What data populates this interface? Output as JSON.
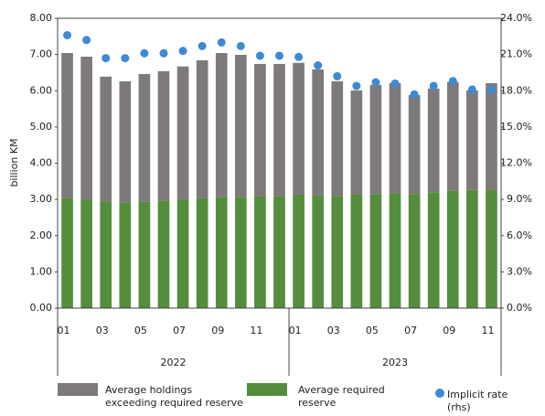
{
  "chart_data": {
    "type": "bar",
    "y_axis_label": "billion KM",
    "categories": [
      "01",
      null,
      "03",
      null,
      "05",
      null,
      "07",
      null,
      "09",
      null,
      "11",
      null,
      "01",
      null,
      "03",
      null,
      "05",
      null,
      "07",
      null,
      "09",
      null,
      "11"
    ],
    "year_labels": [
      "2022",
      "2023"
    ],
    "series": [
      {
        "name": "Average required reserve",
        "type": "bar",
        "color": "#548d3b",
        "values": [
          3.03,
          3.0,
          2.95,
          2.92,
          2.93,
          2.97,
          3.0,
          3.03,
          3.07,
          3.07,
          3.08,
          3.08,
          3.13,
          3.12,
          3.1,
          3.13,
          3.15,
          3.17,
          3.15,
          3.2,
          3.24,
          3.26,
          3.27
        ]
      },
      {
        "name": "Average holdings exceeding required reserve",
        "type": "bar",
        "color": "#7e7a7a",
        "values": [
          4.01,
          3.94,
          3.44,
          3.34,
          3.53,
          3.57,
          3.67,
          3.81,
          3.97,
          3.92,
          3.66,
          3.66,
          3.64,
          3.47,
          3.16,
          2.88,
          3.01,
          3.04,
          2.73,
          2.86,
          3.0,
          2.75,
          2.94
        ]
      },
      {
        "name": "Implicit rate (rhs)",
        "type": "scatter",
        "axis": "y2",
        "color": "#3d8ad6",
        "values": [
          22.6,
          22.2,
          20.7,
          20.7,
          21.1,
          21.1,
          21.3,
          21.7,
          22.0,
          21.7,
          20.9,
          20.9,
          20.8,
          20.1,
          19.2,
          18.4,
          18.7,
          18.6,
          17.7,
          18.4,
          18.8,
          18.1,
          18.1
        ]
      }
    ],
    "ylim": [
      0,
      8
    ],
    "yticks": [
      {
        "value": 0,
        "label": "0.00"
      },
      {
        "value": 1,
        "label": "1.00"
      },
      {
        "value": 2,
        "label": "2.00"
      },
      {
        "value": 3,
        "label": "3.00"
      },
      {
        "value": 4,
        "label": "4.00"
      },
      {
        "value": 5,
        "label": "5.00"
      },
      {
        "value": 6,
        "label": "6.00"
      },
      {
        "value": 7,
        "label": "7.00"
      },
      {
        "value": 8,
        "label": "8.00"
      }
    ],
    "y2lim": [
      0,
      24
    ],
    "y2ticks": [
      {
        "value": 0,
        "label": "0.0%"
      },
      {
        "value": 3,
        "label": "3.0%"
      },
      {
        "value": 6,
        "label": "6.0%"
      },
      {
        "value": 9,
        "label": "9.0%"
      },
      {
        "value": 12,
        "label": "12.0%"
      },
      {
        "value": 15,
        "label": "15.0%"
      },
      {
        "value": 18,
        "label": "18.0%"
      },
      {
        "value": 21,
        "label": "21.0%"
      },
      {
        "value": 24,
        "label": "24.0%"
      }
    ],
    "grid": false
  }
}
